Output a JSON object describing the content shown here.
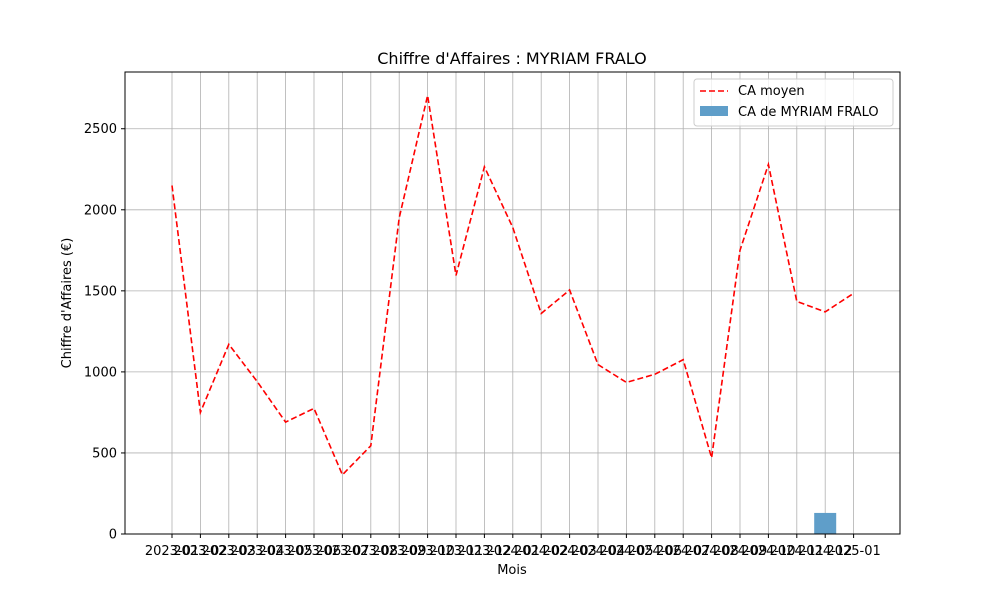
{
  "chart_data": {
    "type": "bar+line",
    "title": "Chiffre d'Affaires : MYRIAM FRALO",
    "xlabel": "Mois",
    "ylabel": "Chiffre d'Affaires (€)",
    "ylim": [
      0,
      2850
    ],
    "yticks": [
      0,
      500,
      1000,
      1500,
      2000,
      2500
    ],
    "grid": true,
    "legend_position": "top-right",
    "categories": [
      "2023-01",
      "2023-02",
      "2023-03",
      "2023-04",
      "2023-05",
      "2023-06",
      "2023-07",
      "2023-08",
      "2023-09",
      "2023-10",
      "2023-11",
      "2023-12",
      "2024-01",
      "2024-02",
      "2024-03",
      "2024-04",
      "2024-05",
      "2024-06",
      "2024-07",
      "2024-08",
      "2024-09",
      "2024-10",
      "2024-11",
      "2024-12",
      "2025-01"
    ],
    "series": [
      {
        "name": "CA moyen",
        "type": "line",
        "style": "dashed",
        "color": "#ff0000",
        "values": [
          2150,
          750,
          1170,
          940,
          690,
          775,
          365,
          545,
          1950,
          2705,
          1595,
          2265,
          1890,
          1360,
          1505,
          1045,
          935,
          985,
          1075,
          470,
          1750,
          2280,
          1435,
          1370,
          1485
        ]
      },
      {
        "name": "CA de MYRIAM FRALO",
        "type": "bar",
        "color": "#5f9ec9",
        "values": [
          null,
          null,
          null,
          null,
          null,
          null,
          null,
          null,
          null,
          null,
          null,
          null,
          null,
          null,
          null,
          null,
          null,
          null,
          null,
          null,
          null,
          null,
          null,
          130,
          null
        ]
      }
    ]
  }
}
